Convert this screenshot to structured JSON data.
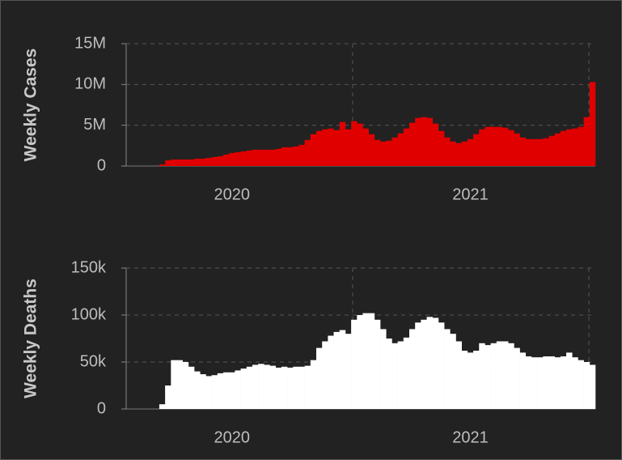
{
  "chart_data": [
    {
      "type": "bar",
      "y_label": "Weekly Cases",
      "color": "#e00000",
      "grid": true,
      "ylim": [
        0,
        15000000
      ],
      "yticks": [
        0,
        {
          "value": 5000000,
          "label": "5M"
        },
        {
          "value": 10000000,
          "label": "10M"
        },
        {
          "value": 15000000,
          "label": "15M"
        }
      ],
      "categories": [
        null,
        null,
        null,
        null,
        null,
        null,
        null,
        null,
        null,
        null,
        null,
        null,
        null,
        null,
        null,
        null,
        null,
        "2020",
        null,
        null,
        null,
        null,
        null,
        null,
        null,
        null,
        null,
        null,
        null,
        null,
        null,
        null,
        null,
        null,
        null,
        null,
        null,
        null,
        null,
        null,
        null,
        null,
        null,
        null,
        null,
        null,
        null,
        null,
        null,
        null,
        null,
        null,
        null,
        null,
        null,
        null,
        null,
        null,
        "2021",
        null,
        null,
        null,
        null,
        null,
        null,
        null,
        null,
        null,
        null,
        null,
        null,
        null,
        null,
        null,
        null,
        null,
        null,
        null,
        null,
        null
      ],
      "values": [
        0,
        0,
        0,
        0,
        0,
        200000,
        700000,
        800000,
        800000,
        800000,
        800000,
        900000,
        900000,
        1000000,
        1100000,
        1200000,
        1400000,
        1600000,
        1700000,
        1800000,
        1900000,
        2000000,
        2000000,
        2000000,
        2000000,
        2100000,
        2300000,
        2300000,
        2400000,
        2600000,
        3200000,
        3900000,
        4300000,
        4500000,
        4600000,
        4400000,
        5400000,
        4500000,
        5500000,
        5200000,
        4600000,
        3900000,
        3200000,
        3000000,
        3100000,
        3500000,
        4000000,
        4600000,
        5300000,
        5900000,
        6000000,
        5900000,
        5200000,
        4300000,
        3500000,
        3000000,
        2800000,
        3000000,
        3300000,
        3900000,
        4500000,
        4800000,
        4800000,
        4800000,
        4700000,
        4400000,
        4000000,
        3500000,
        3300000,
        3300000,
        3300000,
        3400000,
        3700000,
        4000000,
        4300000,
        4500000,
        4600000,
        4800000,
        6000000,
        10300000
      ]
    },
    {
      "type": "bar",
      "y_label": "Weekly Deaths",
      "color": "#ffffff",
      "grid": true,
      "ylim": [
        0,
        150000
      ],
      "yticks": [
        0,
        {
          "value": 50000,
          "label": "50k"
        },
        {
          "value": 100000,
          "label": "100k"
        },
        {
          "value": 150000,
          "label": "150k"
        }
      ],
      "categories": [
        null,
        null,
        null,
        null,
        null,
        null,
        null,
        null,
        null,
        null,
        null,
        null,
        null,
        null,
        null,
        null,
        null,
        "2020",
        null,
        null,
        null,
        null,
        null,
        null,
        null,
        null,
        null,
        null,
        null,
        null,
        null,
        null,
        null,
        null,
        null,
        null,
        null,
        null,
        null,
        null,
        null,
        null,
        null,
        null,
        null,
        null,
        null,
        null,
        null,
        null,
        null,
        null,
        null,
        null,
        null,
        null,
        null,
        null,
        "2021",
        null,
        null,
        null,
        null,
        null,
        null,
        null,
        null,
        null,
        null,
        null,
        null,
        null,
        null,
        null,
        null,
        null,
        null,
        null,
        null,
        null
      ],
      "values": [
        0,
        0,
        0,
        0,
        0,
        5000,
        25000,
        52000,
        52000,
        50000,
        45000,
        40000,
        37000,
        35000,
        36000,
        38000,
        39000,
        39000,
        41000,
        43000,
        45000,
        47000,
        48000,
        47000,
        46000,
        44000,
        45000,
        44000,
        45000,
        45000,
        46000,
        52000,
        65000,
        72000,
        78000,
        82000,
        84000,
        80000,
        95000,
        100000,
        102000,
        102000,
        95000,
        85000,
        75000,
        70000,
        72000,
        76000,
        85000,
        92000,
        95000,
        98000,
        97000,
        92000,
        85000,
        80000,
        72000,
        62000,
        60000,
        62000,
        70000,
        68000,
        70000,
        72000,
        72000,
        70000,
        65000,
        60000,
        56000,
        55000,
        55000,
        56000,
        56000,
        55000,
        56000,
        60000,
        55000,
        52000,
        50000,
        47000
      ]
    }
  ]
}
